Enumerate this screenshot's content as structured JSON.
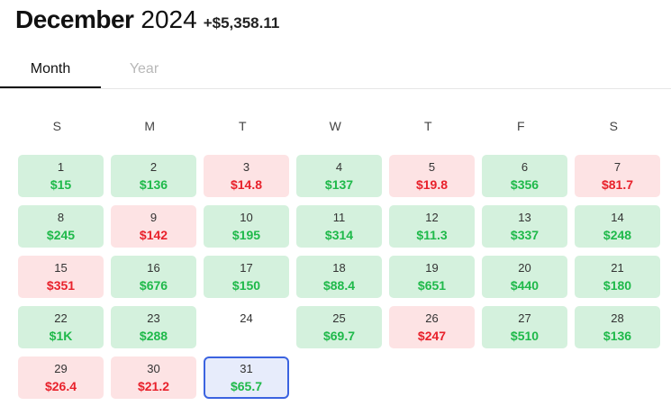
{
  "header": {
    "month": "December",
    "year": "2024",
    "total": "+$5,358.11"
  },
  "tabs": [
    {
      "label": "Month",
      "active": true
    },
    {
      "label": "Year",
      "active": false
    }
  ],
  "weekdays": [
    "S",
    "M",
    "T",
    "W",
    "T",
    "F",
    "S"
  ],
  "colors": {
    "positive": "#1fb94a",
    "negative": "#e8212b",
    "positive_bg": "#d4f1dd",
    "negative_bg": "#fde3e4",
    "selected_border": "#3b63e0"
  },
  "selected_day": "31",
  "days": [
    {
      "day": "1",
      "amount": "$15",
      "status": "pos"
    },
    {
      "day": "2",
      "amount": "$136",
      "status": "pos"
    },
    {
      "day": "3",
      "amount": "$14.8",
      "status": "neg"
    },
    {
      "day": "4",
      "amount": "$137",
      "status": "pos"
    },
    {
      "day": "5",
      "amount": "$19.8",
      "status": "neg"
    },
    {
      "day": "6",
      "amount": "$356",
      "status": "pos"
    },
    {
      "day": "7",
      "amount": "$81.7",
      "status": "neg"
    },
    {
      "day": "8",
      "amount": "$245",
      "status": "pos"
    },
    {
      "day": "9",
      "amount": "$142",
      "status": "neg"
    },
    {
      "day": "10",
      "amount": "$195",
      "status": "pos"
    },
    {
      "day": "11",
      "amount": "$314",
      "status": "pos"
    },
    {
      "day": "12",
      "amount": "$11.3",
      "status": "pos"
    },
    {
      "day": "13",
      "amount": "$337",
      "status": "pos"
    },
    {
      "day": "14",
      "amount": "$248",
      "status": "pos"
    },
    {
      "day": "15",
      "amount": "$351",
      "status": "neg"
    },
    {
      "day": "16",
      "amount": "$676",
      "status": "pos"
    },
    {
      "day": "17",
      "amount": "$150",
      "status": "pos"
    },
    {
      "day": "18",
      "amount": "$88.4",
      "status": "pos"
    },
    {
      "day": "19",
      "amount": "$651",
      "status": "pos"
    },
    {
      "day": "20",
      "amount": "$440",
      "status": "pos"
    },
    {
      "day": "21",
      "amount": "$180",
      "status": "pos"
    },
    {
      "day": "22",
      "amount": "$1K",
      "status": "pos"
    },
    {
      "day": "23",
      "amount": "$288",
      "status": "pos"
    },
    {
      "day": "24",
      "amount": "",
      "status": "none"
    },
    {
      "day": "25",
      "amount": "$69.7",
      "status": "pos"
    },
    {
      "day": "26",
      "amount": "$247",
      "status": "neg"
    },
    {
      "day": "27",
      "amount": "$510",
      "status": "pos"
    },
    {
      "day": "28",
      "amount": "$136",
      "status": "pos"
    },
    {
      "day": "29",
      "amount": "$26.4",
      "status": "neg"
    },
    {
      "day": "30",
      "amount": "$21.2",
      "status": "neg"
    },
    {
      "day": "31",
      "amount": "$65.7",
      "status": "pos"
    }
  ]
}
